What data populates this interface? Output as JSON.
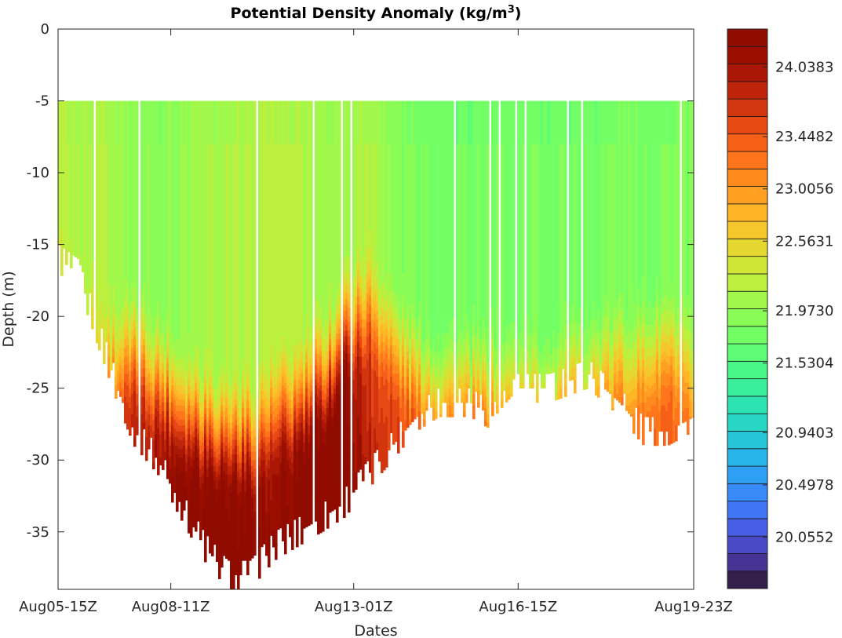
{
  "chart_data": {
    "type": "heatmap",
    "title": "Potential Density Anomaly (kg/m",
    "title_superscript": "3",
    "title_close": ")",
    "xlabel": "Dates",
    "ylabel": "Depth  (m)",
    "ylim": [
      -39,
      0
    ],
    "xlim": [
      0,
      344
    ],
    "y_ticks": [
      0,
      -5,
      -10,
      -15,
      -20,
      -25,
      -30,
      -35
    ],
    "y_tick_labels": [
      "0",
      "-5",
      "-10",
      "-15",
      "-20",
      "-25",
      "-30",
      "-35"
    ],
    "x_ticks": [
      0,
      61,
      160,
      249,
      344
    ],
    "x_tick_labels": [
      "Aug05-15Z",
      "Aug08-11Z",
      "Aug13-01Z",
      "Aug16-15Z",
      "Aug19-23Z"
    ],
    "surface_depth": -5,
    "profiles": {
      "x": [
        0,
        11,
        24,
        32,
        41,
        54,
        66,
        79,
        92,
        104,
        117,
        130,
        143,
        155,
        168,
        181,
        194,
        206,
        223,
        236,
        249,
        266,
        287,
        304,
        317,
        330,
        344
      ],
      "bottom_depth": [
        -16,
        -17,
        -22,
        -25,
        -28,
        -30,
        -33,
        -36,
        -38,
        -38,
        -36,
        -35,
        -34,
        -33,
        -31,
        -29,
        -27,
        -26,
        -26,
        -27,
        -25,
        -25,
        -24,
        -26,
        -28,
        -28,
        -27
      ],
      "pycnocline_depth": [
        -16,
        -18,
        -21,
        -22,
        -22,
        -23,
        -25,
        -26,
        -27,
        -27,
        -26,
        -25,
        -23,
        -20,
        -18,
        -21,
        -23,
        -24,
        -24,
        -24,
        -24,
        -24,
        -23,
        -22,
        -22,
        -21,
        -24
      ],
      "upper_density": [
        22.2,
        22.1,
        22.2,
        22.1,
        22.0,
        21.95,
        22.0,
        22.1,
        22.1,
        22.15,
        22.2,
        22.2,
        22.1,
        22.05,
        22.2,
        21.95,
        21.85,
        21.8,
        21.8,
        21.8,
        21.8,
        21.8,
        21.8,
        21.85,
        21.85,
        21.85,
        21.9
      ],
      "deep_density": [
        22.6,
        22.7,
        22.9,
        23.6,
        23.8,
        24.0,
        24.2,
        24.3,
        24.3,
        24.2,
        24.1,
        24.3,
        24.3,
        24.3,
        23.7,
        23.6,
        23.5,
        23.4,
        23.3,
        23.3,
        23.2,
        23.2,
        23.1,
        23.2,
        23.3,
        23.3,
        23.2
      ]
    },
    "colorbar": {
      "clim": [
        19.62,
        24.36
      ],
      "levels": 32,
      "colormap": "turbo",
      "ticks": [
        24.0383,
        23.4482,
        23.0056,
        22.5631,
        21.973,
        21.5304,
        20.9403,
        20.4978,
        20.0552
      ],
      "tick_labels": [
        "24.0383",
        "23.4482",
        "23.0056",
        "22.5631",
        "21.9730",
        "21.5304",
        "20.9403",
        "20.4978",
        "20.0552"
      ]
    },
    "grid": false
  }
}
